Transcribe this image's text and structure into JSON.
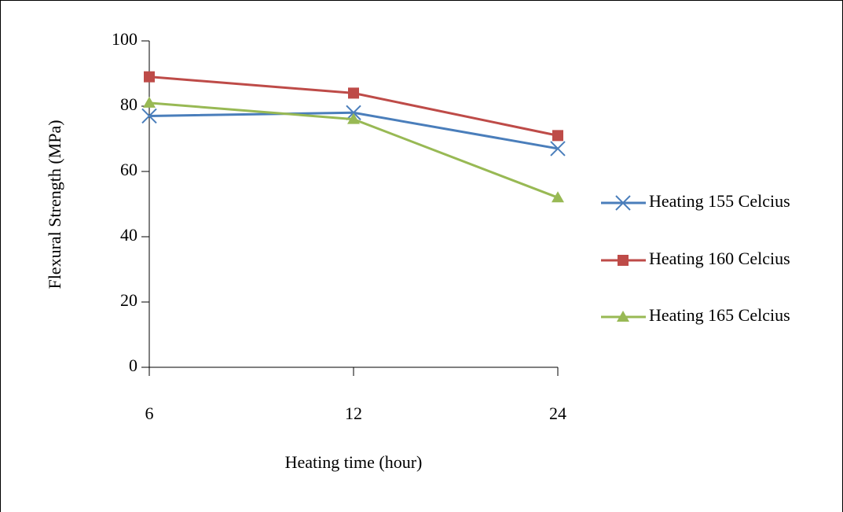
{
  "chart_data": {
    "type": "line",
    "x_label": "Heating time (hour)",
    "y_label": "Flexural Strength (MPa)",
    "categories": [
      "6",
      "12",
      "24"
    ],
    "series": [
      {
        "name": "Heating 155 Celcius",
        "color": "#4a7ebb",
        "marker": "x",
        "values": [
          77,
          78,
          67
        ]
      },
      {
        "name": "Heating 160 Celcius",
        "color": "#be4b48",
        "marker": "square",
        "values": [
          89,
          84,
          71
        ]
      },
      {
        "name": "Heating 165 Celcius",
        "color": "#98b954",
        "marker": "triangle",
        "values": [
          81,
          76,
          52
        ]
      }
    ],
    "ylim": [
      0,
      100
    ],
    "yticks": [
      0,
      20,
      40,
      60,
      80,
      100
    ],
    "grid": false,
    "legend": "right"
  }
}
